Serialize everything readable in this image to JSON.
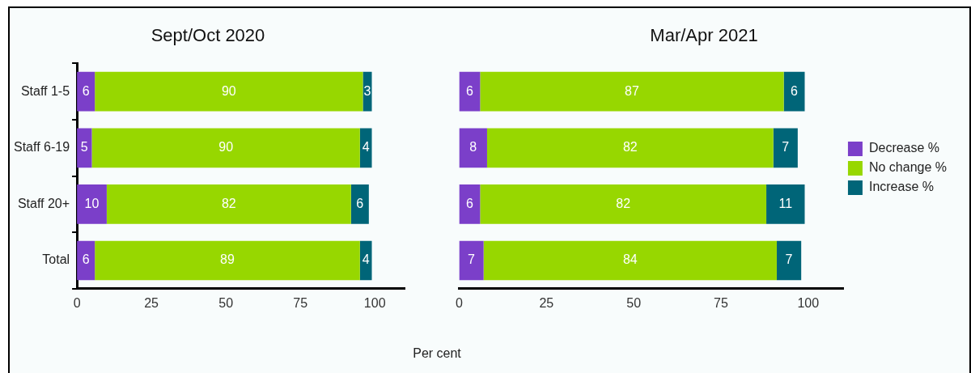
{
  "chart_data": [
    {
      "type": "bar",
      "title": "Sept/Oct 2020",
      "xlabel": "Per cent",
      "orientation": "horizontal",
      "stacked": true,
      "categories": [
        "Staff 1-5",
        "Staff 6-19",
        "Staff 20+",
        "Total"
      ],
      "series": [
        {
          "color": "#7b3fc9",
          "values": [
            6,
            5,
            10,
            6
          ]
        },
        {
          "color": "#97d700",
          "values": [
            90,
            90,
            82,
            89
          ]
        },
        {
          "color": "#006578",
          "values": [
            3,
            4,
            6,
            4
          ]
        }
      ],
      "xlim": [
        0,
        110
      ],
      "xticks": [
        0,
        25,
        50,
        75,
        100
      ],
      "data_labels": true,
      "grid": false,
      "legend": false
    },
    {
      "type": "bar",
      "title": "Mar/Apr 2021",
      "orientation": "horizontal",
      "stacked": true,
      "categories": [
        null,
        null,
        null,
        null
      ],
      "series": [
        {
          "name": "Decrease %",
          "color": "#7b3fc9",
          "values": [
            6,
            8,
            6,
            7
          ]
        },
        {
          "name": "No change %",
          "color": "#97d700",
          "values": [
            87,
            82,
            82,
            84
          ]
        },
        {
          "name": "Increase %",
          "color": "#006578",
          "values": [
            6,
            7,
            11,
            7
          ]
        }
      ],
      "xlim": [
        0,
        110
      ],
      "xticks": [
        0,
        25,
        50,
        75,
        100
      ],
      "data_labels": true,
      "grid": false,
      "legend": "right",
      "tick_labels": "x"
    }
  ]
}
